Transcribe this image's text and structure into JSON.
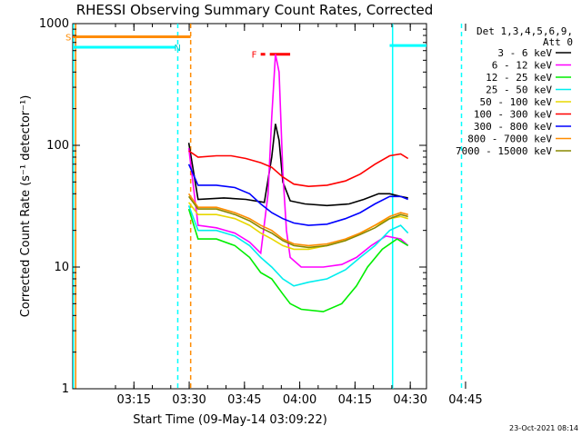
{
  "chart_data": {
    "type": "line",
    "title": "RHESSI Observing Summary Count Rates, Corrected",
    "xlabel": "Start Time (09-May-14 03:09:22)",
    "ylabel": "Corrected Count Rate (s⁻¹ detector⁻¹)",
    "ylim": [
      1,
      1000
    ],
    "yscale": "log",
    "y_ticks": [
      "1",
      "10",
      "100",
      "1000"
    ],
    "xlim_minutes": [
      -11,
      85
    ],
    "x_ticks": [
      {
        "label": "03:15",
        "t": 5.6
      },
      {
        "label": "03:30",
        "t": 20.6
      },
      {
        "label": "03:45",
        "t": 35.6
      },
      {
        "label": "04:00",
        "t": 50.6
      },
      {
        "label": "04:15",
        "t": 65.6
      },
      {
        "label": "04:30",
        "t": 80.6
      },
      {
        "label": "04:45",
        "t": 95.6
      }
    ],
    "legend_header": [
      "Det 1,3,4,5,6,9,",
      "Att 0"
    ],
    "series": [
      {
        "name": "3 - 6 keV",
        "color": "#000000",
        "points": [
          [
            20.5,
            105
          ],
          [
            23,
            36
          ],
          [
            30,
            37
          ],
          [
            36,
            36
          ],
          [
            41,
            34
          ],
          [
            43,
            80
          ],
          [
            44,
            150
          ],
          [
            45,
            110
          ],
          [
            46,
            50
          ],
          [
            48,
            35
          ],
          [
            52,
            33
          ],
          [
            58,
            32
          ],
          [
            64,
            33
          ],
          [
            68,
            36
          ],
          [
            72,
            40
          ],
          [
            75,
            40
          ],
          [
            78,
            38
          ],
          [
            80,
            37
          ]
        ]
      },
      {
        "name": "6 - 12 keV",
        "color": "#ff00ff",
        "points": [
          [
            20.5,
            95
          ],
          [
            23,
            22
          ],
          [
            28,
            21
          ],
          [
            33,
            19
          ],
          [
            37,
            16
          ],
          [
            40,
            13
          ],
          [
            42,
            40
          ],
          [
            43,
            170
          ],
          [
            44,
            560
          ],
          [
            45,
            400
          ],
          [
            46,
            60
          ],
          [
            47,
            20
          ],
          [
            48,
            12
          ],
          [
            51,
            10
          ],
          [
            57,
            10
          ],
          [
            62,
            10.5
          ],
          [
            66,
            12
          ],
          [
            70,
            15
          ],
          [
            74,
            18
          ],
          [
            78,
            17
          ],
          [
            80,
            15
          ]
        ]
      },
      {
        "name": "12 - 25 keV",
        "color": "#00ee00",
        "points": [
          [
            20.5,
            30
          ],
          [
            23,
            17
          ],
          [
            28,
            17
          ],
          [
            33,
            15
          ],
          [
            37,
            12
          ],
          [
            40,
            9
          ],
          [
            43,
            8
          ],
          [
            46,
            6
          ],
          [
            48,
            5
          ],
          [
            51,
            4.5
          ],
          [
            57,
            4.3
          ],
          [
            62,
            5
          ],
          [
            66,
            7
          ],
          [
            69,
            10
          ],
          [
            73,
            14
          ],
          [
            77,
            17
          ],
          [
            80,
            15
          ]
        ]
      },
      {
        "name": "25 - 50 keV",
        "color": "#00eeee",
        "points": [
          [
            20.5,
            32
          ],
          [
            23,
            20
          ],
          [
            28,
            20
          ],
          [
            33,
            18
          ],
          [
            37,
            15
          ],
          [
            40,
            12
          ],
          [
            43,
            10
          ],
          [
            46,
            8
          ],
          [
            49,
            7
          ],
          [
            53,
            7.5
          ],
          [
            58,
            8
          ],
          [
            63,
            9.5
          ],
          [
            67,
            12
          ],
          [
            71,
            15
          ],
          [
            75,
            20
          ],
          [
            78,
            22
          ],
          [
            80,
            19
          ]
        ]
      },
      {
        "name": "50 - 100 keV",
        "color": "#e8d800",
        "points": [
          [
            20.5,
            34
          ],
          [
            23,
            27
          ],
          [
            28,
            27
          ],
          [
            33,
            25
          ],
          [
            37,
            22
          ],
          [
            40,
            19
          ],
          [
            43,
            17
          ],
          [
            46,
            15
          ],
          [
            49,
            14
          ],
          [
            53,
            14
          ],
          [
            58,
            15
          ],
          [
            63,
            16.5
          ],
          [
            67,
            19
          ],
          [
            71,
            22
          ],
          [
            75,
            25
          ],
          [
            78,
            26
          ],
          [
            80,
            25
          ]
        ]
      },
      {
        "name": "100 - 300 keV",
        "color": "#ff0000",
        "points": [
          [
            20.5,
            90
          ],
          [
            23,
            80
          ],
          [
            28,
            82
          ],
          [
            32,
            82
          ],
          [
            36,
            78
          ],
          [
            40,
            72
          ],
          [
            43,
            66
          ],
          [
            46,
            55
          ],
          [
            49,
            48
          ],
          [
            53,
            46
          ],
          [
            58,
            47
          ],
          [
            63,
            51
          ],
          [
            67,
            58
          ],
          [
            71,
            70
          ],
          [
            75,
            82
          ],
          [
            78,
            85
          ],
          [
            80,
            78
          ]
        ]
      },
      {
        "name": "300 - 800 keV",
        "color": "#0000ff",
        "points": [
          [
            20.5,
            70
          ],
          [
            23,
            47
          ],
          [
            28,
            47
          ],
          [
            33,
            45
          ],
          [
            37,
            40
          ],
          [
            40,
            33
          ],
          [
            43,
            28
          ],
          [
            46,
            25
          ],
          [
            49,
            23
          ],
          [
            53,
            22
          ],
          [
            58,
            22.5
          ],
          [
            63,
            25
          ],
          [
            67,
            28
          ],
          [
            71,
            33
          ],
          [
            75,
            38
          ],
          [
            78,
            38
          ],
          [
            80,
            36
          ]
        ]
      },
      {
        "name": "800 - 7000 keV",
        "color": "#ff8c00",
        "points": [
          [
            20.5,
            40
          ],
          [
            23,
            31
          ],
          [
            28,
            31
          ],
          [
            33,
            28
          ],
          [
            37,
            25
          ],
          [
            40,
            22
          ],
          [
            43,
            20
          ],
          [
            46,
            17
          ],
          [
            49,
            15.5
          ],
          [
            53,
            15
          ],
          [
            58,
            15.5
          ],
          [
            63,
            17
          ],
          [
            67,
            19
          ],
          [
            71,
            22
          ],
          [
            75,
            26
          ],
          [
            78,
            28
          ],
          [
            80,
            27
          ]
        ]
      },
      {
        "name": "7000 - 15000 keV",
        "color": "#888800",
        "points": [
          [
            20.5,
            38
          ],
          [
            23,
            30
          ],
          [
            28,
            30
          ],
          [
            33,
            27
          ],
          [
            37,
            24
          ],
          [
            40,
            21
          ],
          [
            43,
            19
          ],
          [
            46,
            16.5
          ],
          [
            49,
            15
          ],
          [
            53,
            14.5
          ],
          [
            58,
            15
          ],
          [
            63,
            16.5
          ],
          [
            67,
            18.5
          ],
          [
            71,
            21
          ],
          [
            75,
            25
          ],
          [
            78,
            27
          ],
          [
            80,
            26
          ]
        ]
      }
    ],
    "annotations": {
      "S": "S",
      "N": "N",
      "F": "F",
      "s_bar": {
        "t_start": -11,
        "t_end": 21,
        "value": 780
      },
      "n_bar": {
        "t_start": -11,
        "t_end": 17,
        "value": 640
      },
      "n_bar_right": {
        "t_start": 75,
        "t_end": 85,
        "value": 660
      },
      "f_bar": {
        "t_start": 40,
        "t_end": 48,
        "value": 560
      }
    },
    "vertical_lines": [
      {
        "t": -10.8,
        "color": "#00ffff",
        "style": "solid"
      },
      {
        "t": -10.2,
        "color": "#ff8c00",
        "style": "solid"
      },
      {
        "t": 17.5,
        "color": "#00ffff",
        "style": "dashed"
      },
      {
        "t": 21.0,
        "color": "#ff8c00",
        "style": "dashed"
      },
      {
        "t": 75.8,
        "color": "#00ffff",
        "style": "solid"
      },
      {
        "t": 94.5,
        "color": "#00ffff",
        "style": "dashed"
      }
    ],
    "grid": false,
    "legend_placement": "right"
  },
  "footer": {
    "timestamp": "23-Oct-2021 08:14"
  }
}
